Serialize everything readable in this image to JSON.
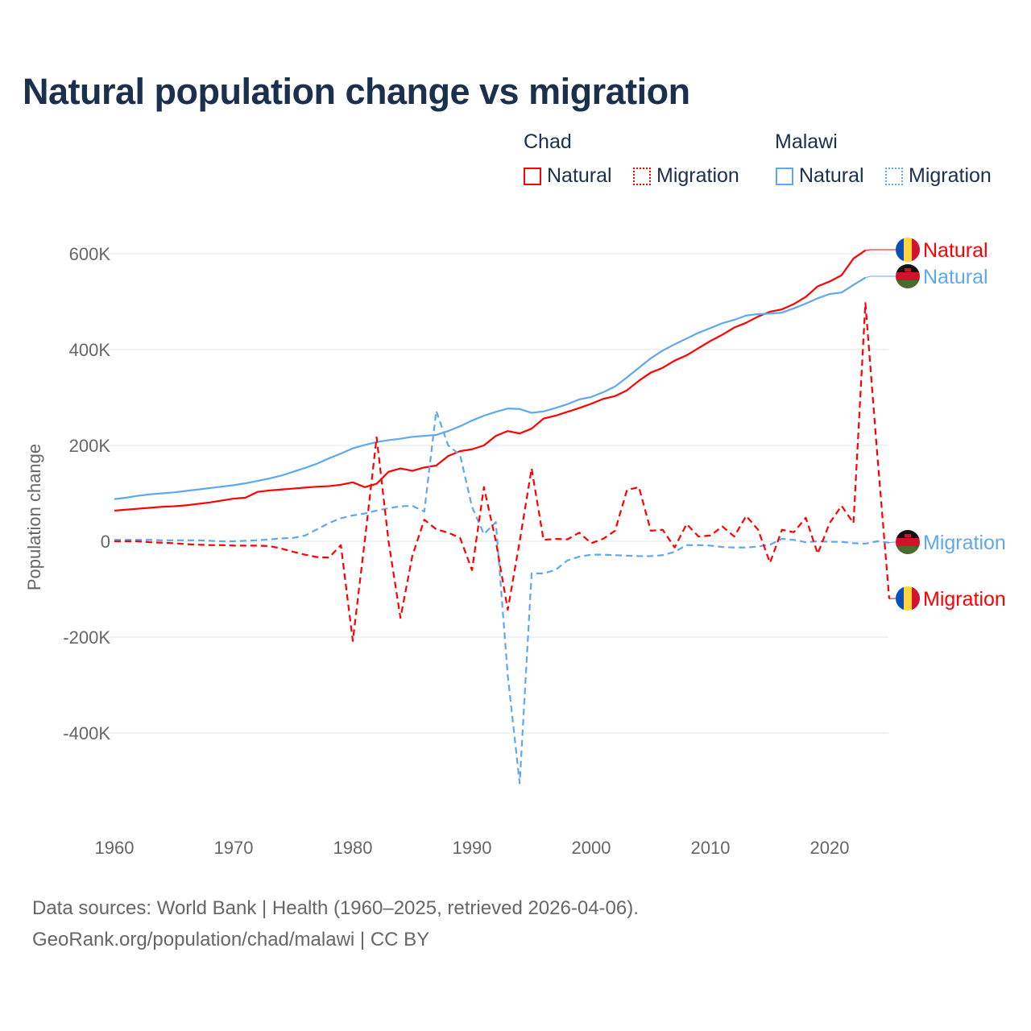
{
  "title": "Natural population change vs migration",
  "legend": {
    "groups": [
      {
        "country": "Chad",
        "items": [
          "Natural",
          "Migration"
        ],
        "color": "#ff0000"
      },
      {
        "country": "Malawi",
        "items": [
          "Natural",
          "Migration"
        ],
        "color": "#5fa8ef"
      }
    ]
  },
  "footer": {
    "line1": "Data sources: World Bank | Health (1960–2025, retrieved 2026-04-06).",
    "line2": "GeoRank.org/population/chad/malawi | CC BY"
  },
  "chart_data": {
    "type": "line",
    "title": "Natural population change vs migration",
    "xlabel": "",
    "ylabel": "Population change",
    "xlim": [
      1960,
      2025
    ],
    "ylim": [
      -550,
      650
    ],
    "y_unit": "thousands",
    "x_ticks": [
      "1960",
      "1970",
      "1980",
      "1990",
      "2000",
      "2010",
      "2020"
    ],
    "y_ticks": [
      {
        "v": 600,
        "label": "600K"
      },
      {
        "v": 400,
        "label": "400K"
      },
      {
        "v": 200,
        "label": "200K"
      },
      {
        "v": 0,
        "label": "0"
      },
      {
        "v": -200,
        "label": "-200K"
      },
      {
        "v": -400,
        "label": "-400K"
      }
    ],
    "grid": true,
    "x_start": 1960,
    "series": [
      {
        "name": "Chad Natural",
        "label": "Natural",
        "country": "Chad",
        "color": "#ff0000",
        "dash": false,
        "values": [
          64,
          66,
          68,
          70,
          72,
          73,
          75,
          78,
          81,
          85,
          89,
          91,
          103,
          106,
          108,
          110,
          112,
          114,
          115,
          118,
          123,
          113,
          120,
          145,
          152,
          147,
          154,
          158,
          178,
          188,
          192,
          200,
          220,
          230,
          225,
          235,
          256,
          262,
          270,
          278,
          287,
          297,
          303,
          315,
          335,
          352,
          362,
          377,
          388,
          403,
          418,
          431,
          446,
          456,
          469,
          479,
          484,
          495,
          510,
          532,
          542,
          555,
          590,
          607,
          null,
          null
        ]
      },
      {
        "name": "Malawi Natural",
        "label": "Natural",
        "country": "Malawi",
        "color": "#5fa8ef",
        "dash": false,
        "values": [
          88,
          91,
          95,
          98,
          100,
          102,
          105,
          108,
          111,
          114,
          117,
          121,
          126,
          131,
          137,
          145,
          153,
          162,
          173,
          183,
          194,
          201,
          207,
          211,
          214,
          218,
          220,
          222,
          230,
          240,
          252,
          262,
          270,
          277,
          276,
          268,
          271,
          278,
          286,
          296,
          301,
          311,
          323,
          342,
          362,
          382,
          398,
          411,
          423,
          435,
          445,
          455,
          462,
          471,
          474,
          475,
          477,
          486,
          496,
          507,
          516,
          519,
          535,
          550,
          null,
          null
        ]
      },
      {
        "name": "Malawi Migration",
        "label": "Migration",
        "country": "Malawi",
        "color": "#5fa8ef",
        "dash": true,
        "values": [
          3,
          3,
          3,
          3,
          2,
          2,
          2,
          2,
          1,
          0,
          0,
          1,
          2,
          4,
          6,
          7,
          12,
          25,
          38,
          48,
          54,
          58,
          64,
          69,
          73,
          74,
          62,
          272,
          200,
          180,
          72,
          15,
          40,
          -280,
          -505,
          -67,
          -67,
          -60,
          -40,
          -32,
          -28,
          -28,
          -29,
          -30,
          -31,
          -31,
          -29,
          -22,
          -8,
          -8,
          -9,
          -12,
          -13,
          -13,
          -11,
          -7,
          5,
          3,
          -2,
          0,
          -1,
          -1,
          -4,
          -5,
          0,
          -3
        ]
      },
      {
        "name": "Chad Migration",
        "label": "Migration",
        "country": "Chad",
        "color": "#ff0000",
        "dash": true,
        "values": [
          0,
          0,
          0,
          -2,
          -3,
          -4,
          -6,
          -7,
          -8,
          -8,
          -9,
          -9,
          -9,
          -10,
          -15,
          -22,
          -28,
          -33,
          -34,
          -8,
          -208,
          0,
          217,
          0,
          -160,
          -30,
          45,
          25,
          18,
          7,
          -60,
          113,
          0,
          -143,
          0,
          152,
          3,
          5,
          4,
          18,
          -4,
          5,
          22,
          107,
          113,
          22,
          24,
          -13,
          36,
          10,
          12,
          31,
          10,
          53,
          24,
          -45,
          24,
          19,
          49,
          -26,
          38,
          74,
          38,
          497,
          180,
          -120
        ]
      }
    ]
  }
}
